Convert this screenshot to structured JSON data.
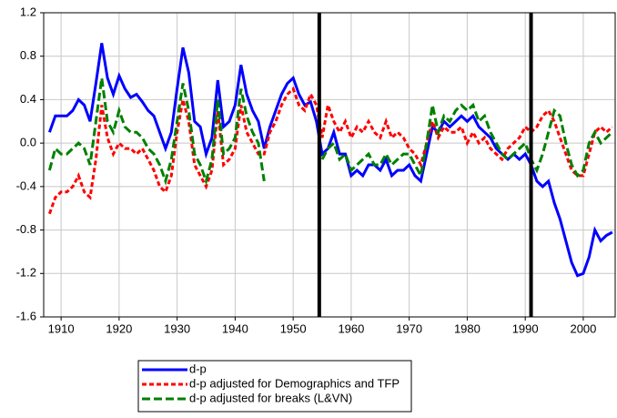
{
  "chart_data": {
    "type": "line",
    "x": [
      1908,
      1909,
      1910,
      1911,
      1912,
      1913,
      1914,
      1915,
      1916,
      1917,
      1918,
      1919,
      1920,
      1921,
      1922,
      1923,
      1924,
      1925,
      1926,
      1927,
      1928,
      1929,
      1930,
      1931,
      1932,
      1933,
      1934,
      1935,
      1936,
      1937,
      1938,
      1939,
      1940,
      1941,
      1942,
      1943,
      1944,
      1945,
      1946,
      1947,
      1948,
      1949,
      1950,
      1951,
      1952,
      1953,
      1954,
      1955,
      1956,
      1957,
      1958,
      1959,
      1960,
      1961,
      1962,
      1963,
      1964,
      1965,
      1966,
      1967,
      1968,
      1969,
      1970,
      1971,
      1972,
      1973,
      1974,
      1975,
      1976,
      1977,
      1978,
      1979,
      1980,
      1981,
      1982,
      1983,
      1984,
      1985,
      1986,
      1987,
      1988,
      1989,
      1990,
      1991,
      1992,
      1993,
      1994,
      1995,
      1996,
      1997,
      1998,
      1999,
      2000,
      2001,
      2002,
      2003,
      2004,
      2005
    ],
    "series": [
      {
        "name": "d-p",
        "color": "#0000ff",
        "dash": "solid",
        "values": [
          0.1,
          0.25,
          0.25,
          0.25,
          0.3,
          0.4,
          0.35,
          0.2,
          0.55,
          0.92,
          0.6,
          0.45,
          0.62,
          0.5,
          0.42,
          0.45,
          0.38,
          0.3,
          0.25,
          0.1,
          -0.05,
          0.1,
          0.5,
          0.88,
          0.65,
          0.2,
          0.15,
          -0.1,
          0.05,
          0.58,
          0.15,
          0.2,
          0.35,
          0.72,
          0.45,
          0.3,
          0.2,
          -0.05,
          0.15,
          0.3,
          0.45,
          0.55,
          0.6,
          0.45,
          0.35,
          0.38,
          0.2,
          -0.1,
          -0.05,
          0.1,
          -0.1,
          -0.1,
          -0.3,
          -0.25,
          -0.3,
          -0.2,
          -0.2,
          -0.25,
          -0.15,
          -0.3,
          -0.25,
          -0.25,
          -0.2,
          -0.3,
          -0.35,
          -0.1,
          0.15,
          0.1,
          0.2,
          0.15,
          0.2,
          0.25,
          0.2,
          0.25,
          0.15,
          0.1,
          0.05,
          -0.05,
          -0.1,
          -0.15,
          -0.1,
          -0.15,
          -0.1,
          -0.2,
          -0.35,
          -0.4,
          -0.35,
          -0.55,
          -0.7,
          -0.9,
          -1.1,
          -1.22,
          -1.2,
          -1.05,
          -0.8,
          -0.9,
          -0.85,
          -0.82
        ]
      },
      {
        "name": "d-p adjusted for Demographics and TFP",
        "color": "#ff0000",
        "dash": "short",
        "values": [
          -0.65,
          -0.5,
          -0.45,
          -0.45,
          -0.4,
          -0.3,
          -0.45,
          -0.5,
          -0.15,
          0.35,
          0.05,
          -0.1,
          0.0,
          -0.05,
          -0.05,
          -0.1,
          -0.05,
          -0.15,
          -0.25,
          -0.4,
          -0.45,
          -0.3,
          0.1,
          0.4,
          0.2,
          -0.2,
          -0.3,
          -0.4,
          -0.25,
          0.3,
          -0.2,
          -0.15,
          -0.05,
          0.35,
          0.1,
          0.0,
          -0.1,
          -0.1,
          0.1,
          0.2,
          0.35,
          0.45,
          0.5,
          0.35,
          0.3,
          0.45,
          0.35,
          0.05,
          0.35,
          0.2,
          0.1,
          0.2,
          0.05,
          0.15,
          0.1,
          0.2,
          0.1,
          0.05,
          0.2,
          0.05,
          0.1,
          0.05,
          -0.05,
          -0.1,
          -0.2,
          0.0,
          0.2,
          0.05,
          0.15,
          0.1,
          0.1,
          0.15,
          0.0,
          0.1,
          0.0,
          0.05,
          -0.05,
          -0.1,
          -0.15,
          -0.05,
          0.0,
          0.05,
          0.15,
          0.1,
          0.15,
          0.25,
          0.3,
          0.2,
          0.05,
          -0.1,
          -0.25,
          -0.3,
          -0.3,
          -0.1,
          0.1,
          0.15,
          0.1,
          0.15
        ]
      },
      {
        "name": "d-p adjusted for breaks (L&VN)",
        "color": "#008000",
        "dash": "long",
        "values": [
          -0.25,
          -0.05,
          -0.1,
          -0.1,
          -0.05,
          0.0,
          -0.05,
          -0.2,
          0.2,
          0.6,
          0.2,
          0.1,
          0.3,
          0.15,
          0.1,
          0.1,
          0.05,
          -0.05,
          -0.1,
          -0.2,
          -0.35,
          -0.15,
          0.2,
          0.55,
          0.3,
          -0.1,
          -0.2,
          -0.35,
          -0.15,
          0.4,
          -0.1,
          -0.05,
          0.05,
          0.5,
          0.25,
          0.1,
          0.0,
          -0.35,
          null,
          null,
          null,
          null,
          null,
          null,
          null,
          null,
          null,
          -0.15,
          -0.05,
          0.0,
          -0.15,
          -0.1,
          -0.25,
          -0.2,
          -0.15,
          -0.1,
          -0.2,
          -0.2,
          -0.1,
          -0.2,
          -0.15,
          -0.1,
          -0.1,
          -0.2,
          -0.3,
          0.0,
          0.35,
          0.1,
          0.25,
          0.2,
          0.3,
          0.35,
          0.3,
          0.35,
          0.2,
          0.25,
          0.1,
          0.0,
          -0.1,
          -0.15,
          -0.1,
          -0.05,
          0.0,
          -0.15,
          -0.25,
          -0.1,
          0.1,
          0.3,
          0.25,
          0.0,
          -0.2,
          -0.3,
          -0.25,
          0.0,
          0.1,
          0.0,
          0.05,
          0.1
        ]
      }
    ],
    "reference_lines": [
      1954.5,
      1991
    ],
    "xlim": [
      1907,
      2005.5
    ],
    "xticks": [
      1910,
      1920,
      1930,
      1940,
      1950,
      1960,
      1970,
      1980,
      1990,
      2000
    ],
    "ylim": [
      -1.6,
      1.2
    ],
    "yticks": [
      -1.6,
      -1.2,
      -0.8,
      -0.4,
      {
        "value": 0,
        "label": "0.0"
      },
      0.4,
      0.8,
      1.2
    ],
    "grid": true,
    "legend": "bottom"
  }
}
